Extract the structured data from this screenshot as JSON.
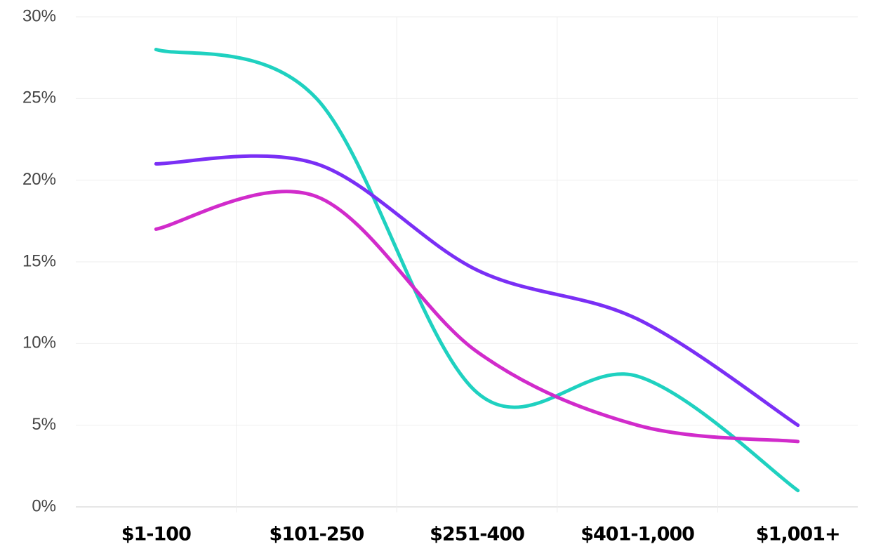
{
  "chart_data": {
    "type": "line",
    "categories": [
      "$1-100",
      "$101-250",
      "$251-400",
      "$401-1,000",
      "$1,001+"
    ],
    "series": [
      {
        "color": "#1fd1c0",
        "values": [
          28,
          25,
          7,
          8,
          1
        ]
      },
      {
        "color": "#7a2ff5",
        "values": [
          21,
          21,
          14.5,
          11.5,
          5
        ]
      },
      {
        "color": "#d12bcb",
        "values": [
          17,
          19,
          9.5,
          5,
          4
        ]
      }
    ],
    "ylim": [
      0,
      30
    ],
    "yticks": [
      {
        "value": 0,
        "label": "0%"
      },
      {
        "value": 5,
        "label": "5%"
      },
      {
        "value": 10,
        "label": "10%"
      },
      {
        "value": 15,
        "label": "15%"
      },
      {
        "value": 20,
        "label": "20%"
      },
      {
        "value": 25,
        "label": "25%"
      },
      {
        "value": 30,
        "label": "30%"
      }
    ],
    "grid": true
  }
}
